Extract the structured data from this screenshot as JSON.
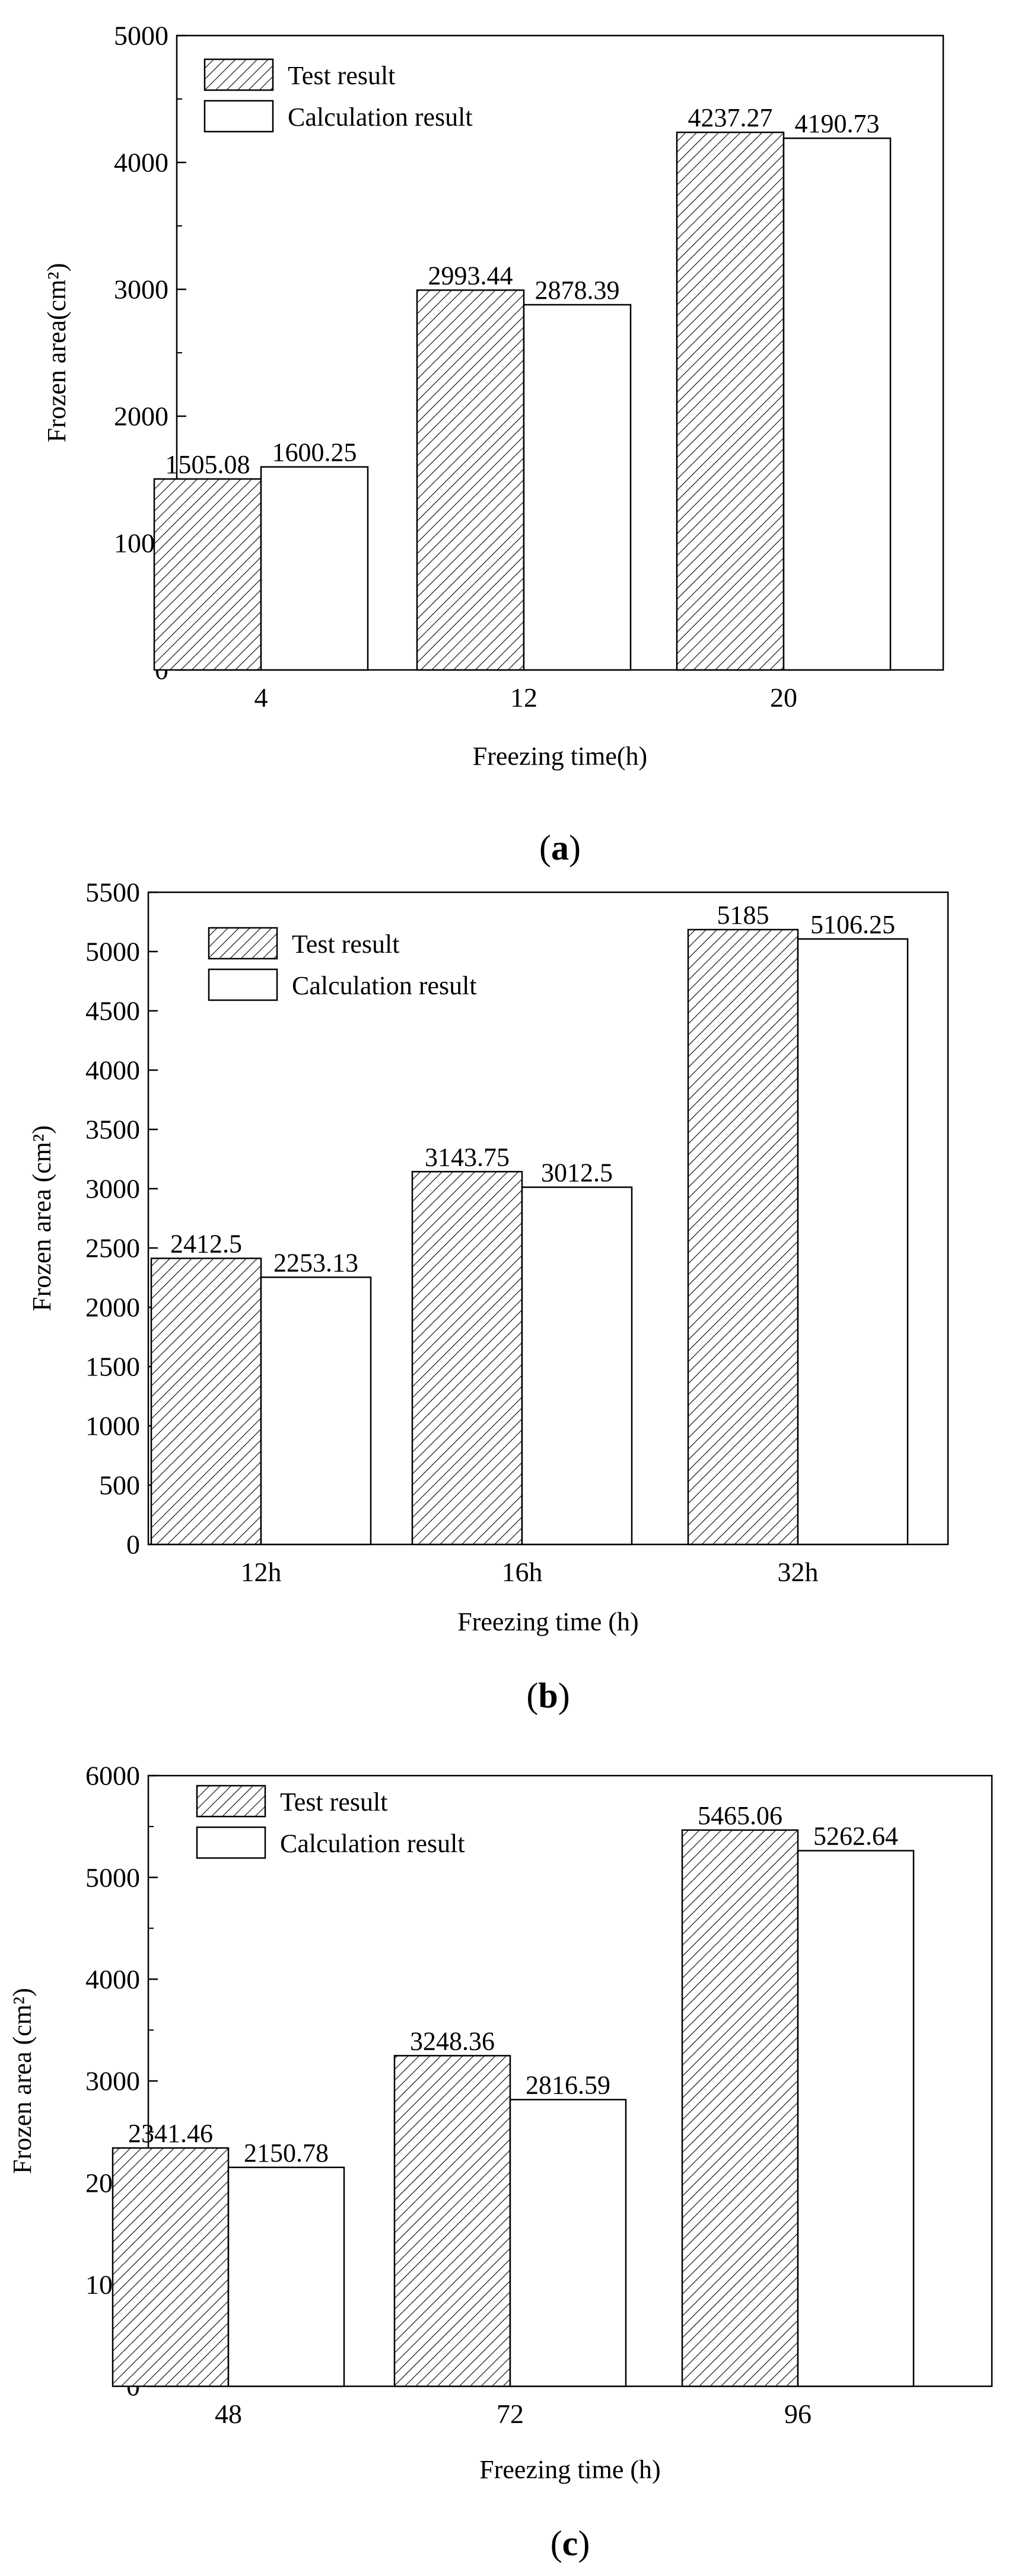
{
  "colors": {
    "ink": "#000000",
    "paper": "#ffffff"
  },
  "panels": [
    {
      "letter": "a",
      "chart_data": {
        "type": "bar",
        "categories": [
          "4",
          "12",
          "20"
        ],
        "series": [
          {
            "name": "Test result",
            "values": [
              1505.08,
              2993.44,
              4237.27
            ],
            "pattern": "hatched"
          },
          {
            "name": "Calculation result",
            "values": [
              1600.25,
              2878.39,
              4190.73
            ],
            "pattern": "plain"
          }
        ],
        "value_labels": [
          [
            "1505.08",
            "2993.44",
            "4237.27"
          ],
          [
            "1600.25",
            "2878.39",
            "4190.73"
          ]
        ],
        "xlabel": "Freezing time(h)",
        "ylabel": "Frozen area(cm²)",
        "ylim": [
          0,
          5000
        ],
        "yticks": [
          0,
          1000,
          2000,
          3000,
          4000,
          5000
        ],
        "minor_step": 500,
        "legend": "top-left",
        "grid": false
      }
    },
    {
      "letter": "b",
      "chart_data": {
        "type": "bar",
        "categories": [
          "12h",
          "16h",
          "32h"
        ],
        "series": [
          {
            "name": "Test result",
            "values": [
              2412.5,
              3143.75,
              5185
            ],
            "pattern": "hatched"
          },
          {
            "name": "Calculation result",
            "values": [
              2253.13,
              3012.5,
              5106.25
            ],
            "pattern": "plain"
          }
        ],
        "value_labels": [
          [
            "2412.5",
            "3143.75",
            "5185"
          ],
          [
            "2253.13",
            "3012.5",
            "5106.25"
          ]
        ],
        "xlabel": "Freezing time (h)",
        "ylabel": "Frozen area (cm²)",
        "ylim": [
          0,
          5500
        ],
        "yticks": [
          0,
          500,
          1000,
          1500,
          2000,
          2500,
          3000,
          3500,
          4000,
          4500,
          5000,
          5500
        ],
        "minor_step": 0,
        "legend": "top-left",
        "grid": false
      }
    },
    {
      "letter": "c",
      "chart_data": {
        "type": "bar",
        "categories": [
          "48",
          "72",
          "96"
        ],
        "series": [
          {
            "name": "Test result",
            "values": [
              2341.46,
              3248.36,
              5465.06
            ],
            "pattern": "hatched"
          },
          {
            "name": "Calculation result",
            "values": [
              2150.78,
              2816.59,
              5262.64
            ],
            "pattern": "plain"
          }
        ],
        "value_labels": [
          [
            "2341.46",
            "3248.36",
            "5465.06"
          ],
          [
            "2150.78",
            "2816.59",
            "5262.64"
          ]
        ],
        "xlabel": "Freezing time (h)",
        "ylabel": "Frozen area (cm²)",
        "ylim": [
          0,
          6000
        ],
        "yticks": [
          0,
          1000,
          2000,
          3000,
          4000,
          5000,
          6000
        ],
        "minor_step": 500,
        "legend": "top-left",
        "grid": false
      }
    }
  ]
}
